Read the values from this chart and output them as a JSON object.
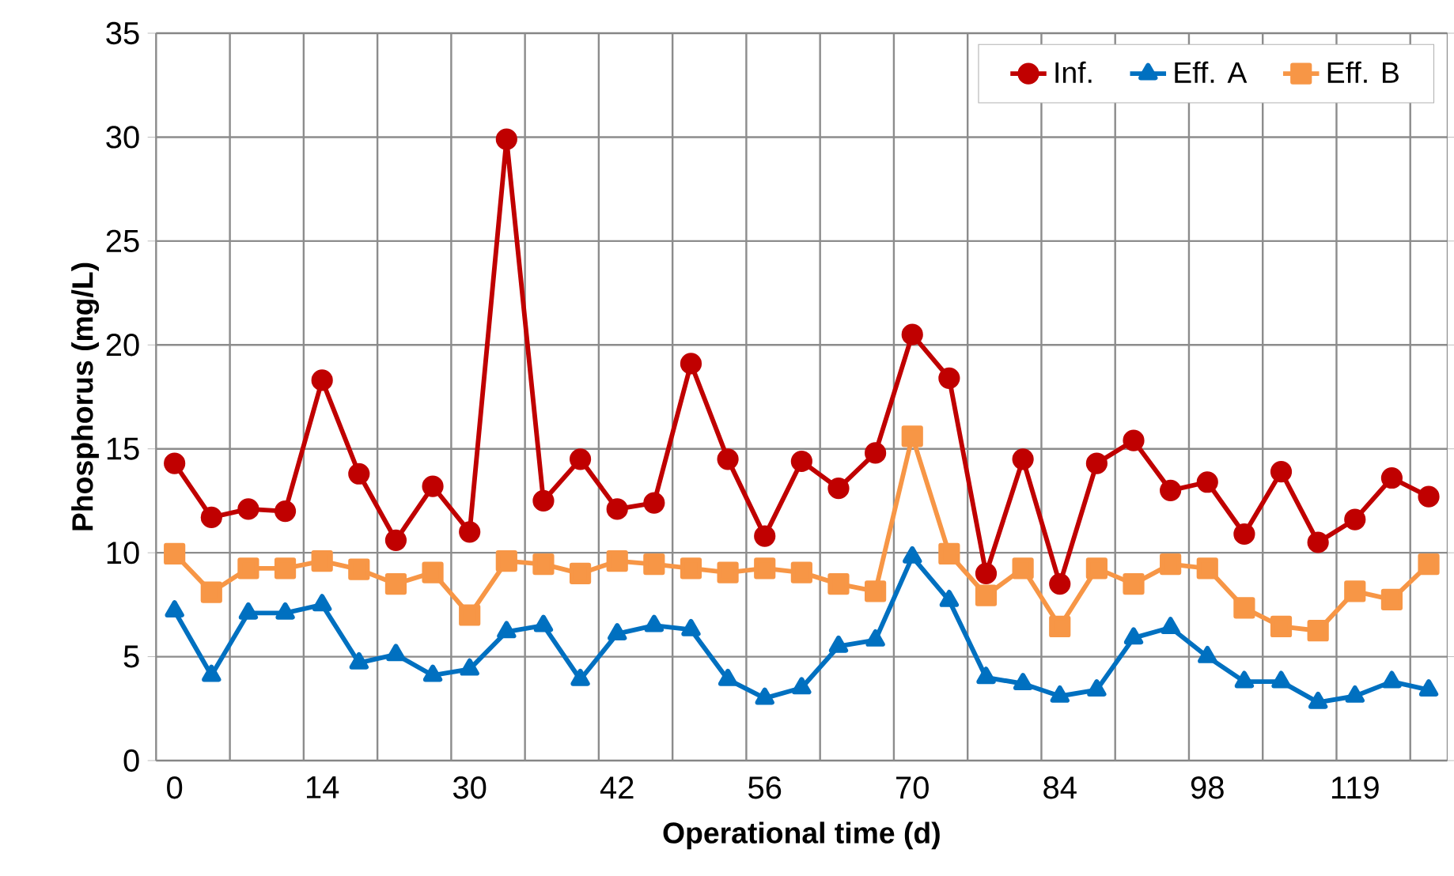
{
  "chart_data": {
    "type": "line",
    "xlabel": "Operational time (d)",
    "ylabel": "Phosphorus (mg/L)",
    "categories": [
      "0",
      null,
      null,
      null,
      "14",
      null,
      null,
      null,
      "30",
      null,
      null,
      null,
      "42",
      null,
      null,
      null,
      "56",
      null,
      null,
      null,
      "70",
      null,
      null,
      null,
      "84",
      null,
      null,
      null,
      "98",
      null,
      null,
      null,
      "119",
      null,
      null
    ],
    "series": [
      {
        "name": "Inf.",
        "color": "#c00000",
        "marker": "circle",
        "values": [
          14.3,
          11.7,
          12.1,
          12.0,
          18.3,
          13.8,
          10.6,
          13.2,
          11.0,
          29.9,
          12.5,
          14.5,
          12.1,
          12.4,
          19.1,
          14.5,
          10.8,
          14.4,
          13.1,
          14.8,
          20.5,
          18.4,
          9.0,
          14.5,
          8.5,
          14.3,
          15.4,
          13.0,
          13.4,
          10.9,
          13.9,
          10.5,
          11.6,
          13.6,
          12.7
        ]
      },
      {
        "name": "Eff. A",
        "color": "#0070c0",
        "marker": "triangle",
        "values": [
          7.2,
          4.1,
          7.1,
          7.1,
          7.5,
          4.7,
          5.1,
          4.1,
          4.4,
          6.2,
          6.5,
          3.9,
          6.1,
          6.5,
          6.3,
          3.9,
          3.0,
          3.5,
          5.5,
          5.8,
          9.8,
          7.7,
          4.0,
          3.7,
          3.1,
          3.4,
          5.9,
          6.4,
          5.0,
          3.8,
          3.8,
          2.8,
          3.1,
          3.8,
          3.4
        ]
      },
      {
        "name": "Eff. B",
        "color": "#f79646",
        "marker": "square",
        "values": [
          9.95,
          8.1,
          9.25,
          9.25,
          9.6,
          9.2,
          8.5,
          9.05,
          7.0,
          9.6,
          9.45,
          9.0,
          9.6,
          9.45,
          9.25,
          9.05,
          9.25,
          9.05,
          8.5,
          8.15,
          15.6,
          9.95,
          7.95,
          9.25,
          6.45,
          9.25,
          8.5,
          9.45,
          9.25,
          7.35,
          6.45,
          6.25,
          8.15,
          7.75,
          9.45
        ]
      }
    ],
    "ylim": [
      0,
      35
    ],
    "yticks": [
      0,
      5,
      10,
      15,
      20,
      25,
      30,
      35
    ],
    "grid": true,
    "legend": "top right",
    "line_style": "solid"
  }
}
